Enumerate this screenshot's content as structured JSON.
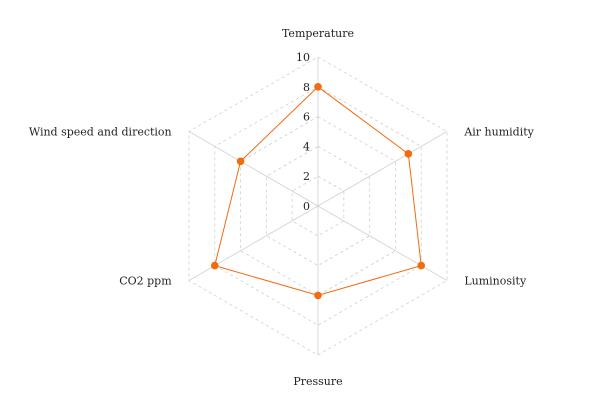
{
  "chart_data": {
    "type": "radar",
    "categories": [
      "Temperature",
      "Air humidity",
      "Luminosity",
      "Pressure",
      "CO2 ppm",
      "Wind speed and direction"
    ],
    "series": [
      {
        "values": [
          8,
          7,
          8,
          6,
          8,
          6
        ]
      }
    ],
    "rlim": [
      0,
      10
    ],
    "radial_ticks": [
      0,
      2,
      4,
      6,
      8,
      10
    ],
    "grid": true,
    "colors": {
      "series": "#f26b0f",
      "grid": "#d4d4d4",
      "spoke": "#d4d4d4"
    }
  }
}
